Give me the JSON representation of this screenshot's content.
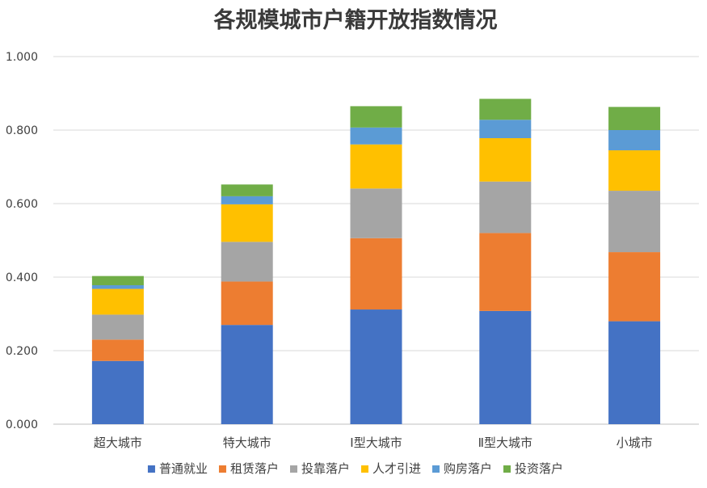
{
  "chart_data": {
    "type": "bar",
    "stacked": true,
    "title": "各规模城市户籍开放指数情况",
    "xlabel": "",
    "ylabel": "",
    "ylim": [
      0,
      1.0
    ],
    "yticks": [
      "0.000",
      "0.200",
      "0.400",
      "0.600",
      "0.800",
      "1.000"
    ],
    "ytick_values": [
      0,
      0.2,
      0.4,
      0.6,
      0.8,
      1.0
    ],
    "grid": true,
    "legend_position": "bottom",
    "categories": [
      "超大城市",
      "特大城市",
      "Ⅰ型大城市",
      "Ⅱ型大城市",
      "小城市"
    ],
    "series": [
      {
        "name": "普通就业",
        "color": "#4472C4",
        "values": [
          0.172,
          0.27,
          0.312,
          0.308,
          0.28
        ]
      },
      {
        "name": "租赁落户",
        "color": "#ED7D31",
        "values": [
          0.058,
          0.118,
          0.194,
          0.212,
          0.188
        ]
      },
      {
        "name": "投靠落户",
        "color": "#A5A5A5",
        "values": [
          0.068,
          0.108,
          0.135,
          0.14,
          0.167
        ]
      },
      {
        "name": "人才引进",
        "color": "#FFC000",
        "values": [
          0.07,
          0.102,
          0.12,
          0.118,
          0.11
        ]
      },
      {
        "name": "购房落户",
        "color": "#5B9BD5",
        "values": [
          0.01,
          0.022,
          0.046,
          0.05,
          0.055
        ]
      },
      {
        "name": "投资落户",
        "color": "#70AD47",
        "values": [
          0.025,
          0.032,
          0.058,
          0.057,
          0.063
        ]
      }
    ]
  }
}
